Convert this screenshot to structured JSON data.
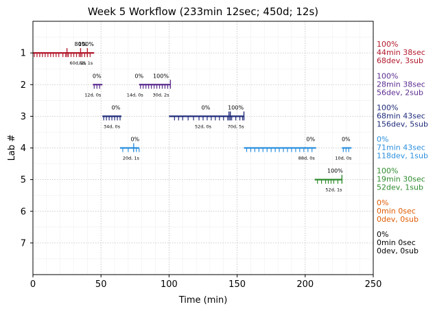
{
  "chart_data": {
    "type": "timeline",
    "title": "Week 5 Workflow (233min 12sec; 450d; 12s)",
    "xlabel": "Time (min)",
    "ylabel": "Lab #",
    "xlim": [
      0,
      250
    ],
    "ylim": [
      8,
      0
    ],
    "xticks": [
      "0",
      "50",
      "100",
      "150",
      "200",
      "250"
    ],
    "yticks": [
      "1",
      "2",
      "3",
      "4",
      "5",
      "6",
      "7"
    ],
    "grid": true,
    "labs": [
      {
        "lab": 1,
        "color": "#b2182b",
        "summary": [
          "100%",
          "44min 38sec",
          "68dev, 3sub"
        ],
        "segments": [
          {
            "start": 0,
            "end": 45
          }
        ],
        "ticks": [
          1,
          3,
          5,
          7,
          9,
          11,
          13,
          15,
          17,
          19,
          22,
          24,
          26,
          28,
          30,
          32,
          34,
          36,
          38,
          40,
          42
        ],
        "subs": [
          25,
          35,
          40
        ],
        "labels": [
          {
            "t": 35,
            "text": "80%",
            "pos": "above"
          },
          {
            "t": 39,
            "text": "100%",
            "pos": "above"
          },
          {
            "t": 33,
            "text": "60d, 2s",
            "pos": "below"
          },
          {
            "t": 39,
            "text": "8d, 1s",
            "pos": "below"
          }
        ]
      },
      {
        "lab": 2,
        "color": "#5b2c8f",
        "summary": [
          "100%",
          "28min 38sec",
          "56dev, 2sub"
        ],
        "segments": [
          {
            "start": 44,
            "end": 51
          },
          {
            "start": 78,
            "end": 101
          }
        ],
        "ticks": [
          45,
          47,
          49,
          79,
          81,
          83,
          85,
          87,
          89,
          91,
          93,
          95,
          97,
          99
        ],
        "subs": [
          101
        ],
        "labels": [
          {
            "t": 47,
            "text": "0%",
            "pos": "above"
          },
          {
            "t": 78,
            "text": "0%",
            "pos": "above"
          },
          {
            "t": 94,
            "text": "100%",
            "pos": "above"
          },
          {
            "t": 44,
            "text": "12d, 0s",
            "pos": "below"
          },
          {
            "t": 75,
            "text": "14d, 0s",
            "pos": "below"
          },
          {
            "t": 94,
            "text": "30d, 2s",
            "pos": "below"
          }
        ]
      },
      {
        "lab": 3,
        "color": "#1f2a7a",
        "summary": [
          "100%",
          "68min 43sec",
          "156dev, 5sub"
        ],
        "segments": [
          {
            "start": 51,
            "end": 65
          },
          {
            "start": 100,
            "end": 155
          }
        ],
        "ticks": [
          52,
          54,
          56,
          58,
          60,
          62,
          64,
          104,
          107,
          110,
          114,
          118,
          122,
          125,
          128,
          131,
          134,
          137,
          140,
          143,
          146,
          149,
          152,
          154
        ],
        "subs": [
          144,
          145,
          155
        ],
        "labels": [
          {
            "t": 61,
            "text": "0%",
            "pos": "above"
          },
          {
            "t": 127,
            "text": "0%",
            "pos": "above"
          },
          {
            "t": 149,
            "text": "100%",
            "pos": "above"
          },
          {
            "t": 58,
            "text": "34d, 0s",
            "pos": "below"
          },
          {
            "t": 125,
            "text": "52d, 0s",
            "pos": "below"
          },
          {
            "t": 149,
            "text": "70d, 5s",
            "pos": "below"
          }
        ]
      },
      {
        "lab": 4,
        "color": "#2b8fde",
        "summary": [
          "0%",
          "71min 43sec",
          "118dev, 1sub"
        ],
        "segments": [
          {
            "start": 64,
            "end": 78
          },
          {
            "start": 155,
            "end": 208
          },
          {
            "start": 227,
            "end": 234
          }
        ],
        "ticks": [
          66,
          70,
          74,
          76,
          78,
          157,
          160,
          163,
          166,
          169,
          172,
          175,
          178,
          181,
          184,
          187,
          190,
          193,
          196,
          199,
          202,
          205,
          228,
          230,
          232
        ],
        "subs": [
          74
        ],
        "labels": [
          {
            "t": 75,
            "text": "0%",
            "pos": "above"
          },
          {
            "t": 204,
            "text": "0%",
            "pos": "above"
          },
          {
            "t": 230,
            "text": "0%",
            "pos": "above"
          },
          {
            "t": 72,
            "text": "20d, 1s",
            "pos": "below"
          },
          {
            "t": 201,
            "text": "88d, 0s",
            "pos": "below"
          },
          {
            "t": 228,
            "text": "10d, 0s",
            "pos": "below"
          }
        ]
      },
      {
        "lab": 5,
        "color": "#2e8b2e",
        "summary": [
          "100%",
          "19min 30sec",
          "52dev, 1sub"
        ],
        "segments": [
          {
            "start": 207,
            "end": 227
          }
        ],
        "ticks": [
          209,
          212,
          215,
          217,
          219,
          221,
          224
        ],
        "subs": [
          227
        ],
        "labels": [
          {
            "t": 222,
            "text": "100%",
            "pos": "above"
          },
          {
            "t": 221,
            "text": "52d, 1s",
            "pos": "below"
          }
        ]
      },
      {
        "lab": 6,
        "color": "#e05a00",
        "summary": [
          "0%",
          "0min 0sec",
          "0dev, 0sub"
        ],
        "segments": [],
        "ticks": [],
        "subs": [],
        "labels": []
      },
      {
        "lab": 7,
        "color": "#000000",
        "summary": [
          "0%",
          "0min 0sec",
          "0dev, 0sub"
        ],
        "segments": [],
        "ticks": [],
        "subs": [],
        "labels": []
      }
    ]
  }
}
